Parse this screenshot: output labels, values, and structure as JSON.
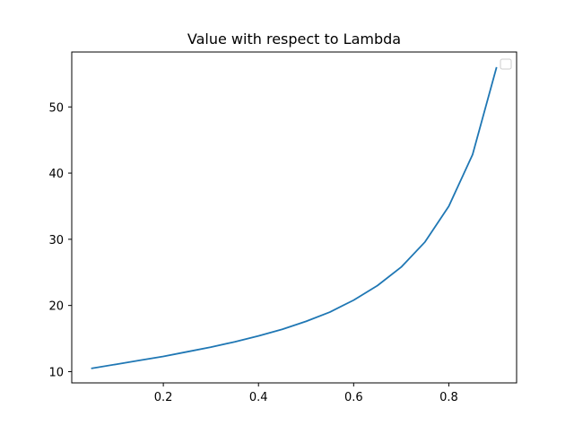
{
  "chart_data": {
    "type": "line",
    "title": "Value with respect to Lambda",
    "xlabel": "",
    "ylabel": "",
    "xlim": [
      0.0075,
      0.9425
    ],
    "ylim": [
      8.3,
      58.3
    ],
    "xticks": [
      0.2,
      0.4,
      0.6,
      0.8
    ],
    "xtick_labels": [
      "0.2",
      "0.4",
      "0.6",
      "0.8"
    ],
    "yticks": [
      10,
      20,
      30,
      40,
      50
    ],
    "ytick_labels": [
      "10",
      "20",
      "30",
      "40",
      "50"
    ],
    "grid": false,
    "legend": {
      "placement": "upper-right",
      "entries": []
    },
    "series": [
      {
        "color": "#1f77b4",
        "x": [
          0.05,
          0.1,
          0.15,
          0.2,
          0.25,
          0.3,
          0.35,
          0.4,
          0.45,
          0.5,
          0.55,
          0.6,
          0.65,
          0.7,
          0.75,
          0.8,
          0.85,
          0.9
        ],
        "y": [
          10.5,
          11.1,
          11.7,
          12.3,
          13.0,
          13.7,
          14.5,
          15.4,
          16.4,
          17.6,
          19.0,
          20.8,
          23.0,
          25.8,
          29.6,
          35.0,
          42.8,
          55.9
        ]
      }
    ]
  }
}
